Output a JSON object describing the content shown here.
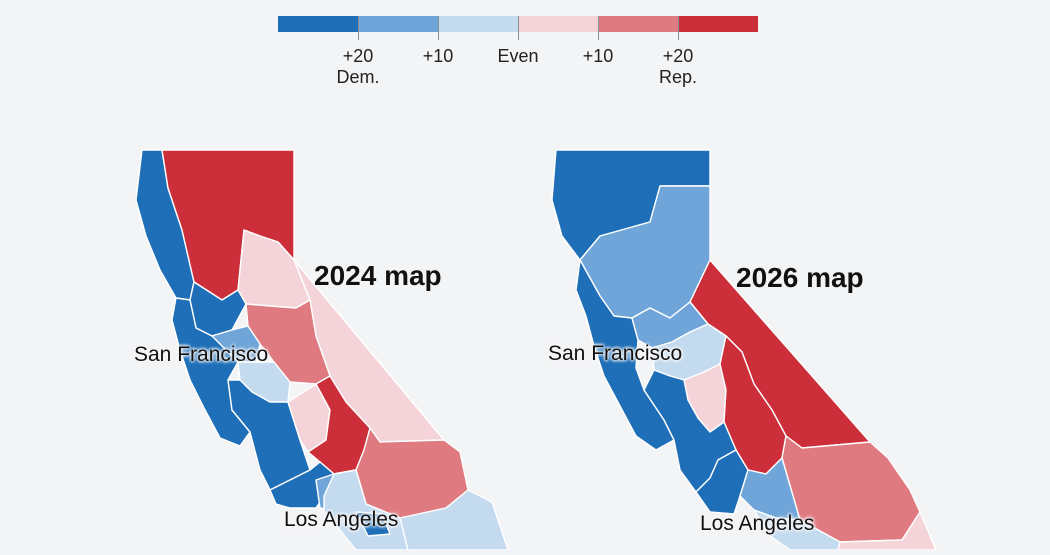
{
  "legend": {
    "swatch_colors": [
      "#1f6fb8",
      "#6fa5d8",
      "#c4dbef",
      "#f4d4d8",
      "#df7a80",
      "#cc2f39"
    ],
    "labels": [
      {
        "line1": "+20",
        "line2": "Dem."
      },
      {
        "line1": "+10",
        "line2": ""
      },
      {
        "line1": "Even",
        "line2": ""
      },
      {
        "line1": "+10",
        "line2": ""
      },
      {
        "line1": "+20",
        "line2": "Rep."
      }
    ]
  },
  "maps": [
    {
      "title": "2024 map",
      "cities": {
        "sf": "San Francisco",
        "la": "Los Angeles"
      }
    },
    {
      "title": "2026 map",
      "cities": {
        "sf": "San Francisco",
        "la": "Los Angeles"
      }
    }
  ],
  "colors": {
    "dem_strong": "#1f6fb8",
    "dem_lean": "#6fa5d8",
    "dem_slight": "#c4dbef",
    "rep_slight": "#f4d4d8",
    "rep_lean": "#df7a80",
    "rep_strong": "#cc2f39"
  }
}
